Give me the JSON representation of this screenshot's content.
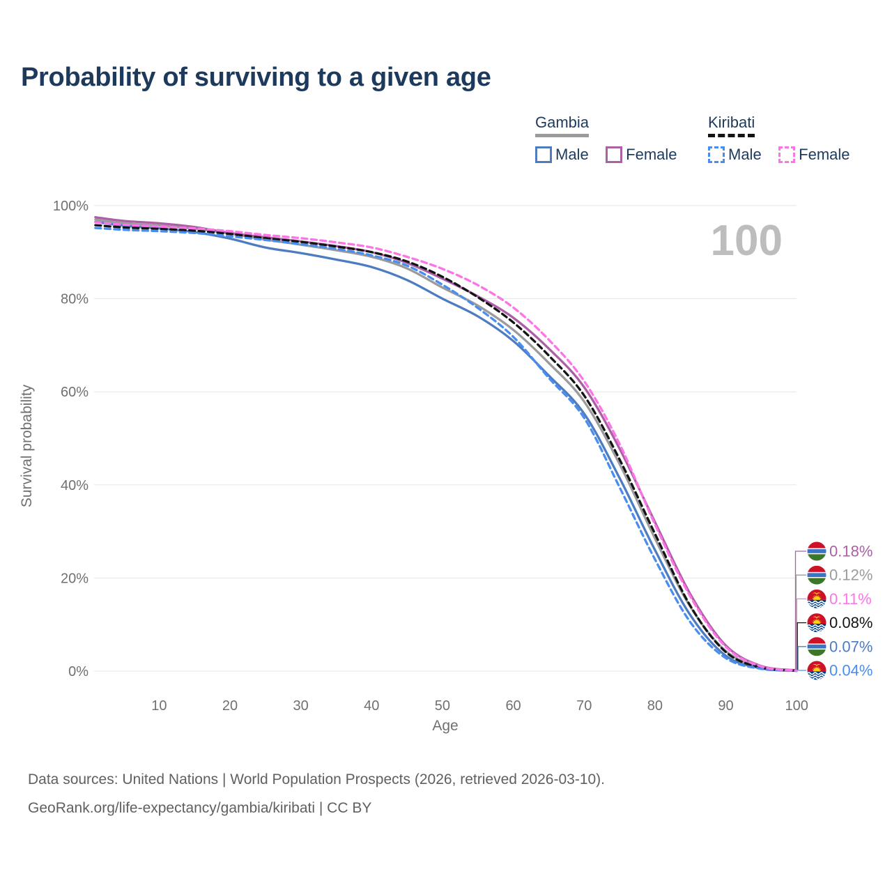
{
  "title": "Probability of surviving to a given age",
  "age_counter": "100",
  "legend": {
    "gambia": {
      "label": "Gambia",
      "male": "Male",
      "female": "Female"
    },
    "kiribati": {
      "label": "Kiribati",
      "male": "Male",
      "female": "Female"
    }
  },
  "colors": {
    "gambia_male": "#4d7cc0",
    "gambia_female": "#ac5fa5",
    "gambia_all": "#9b9b9b",
    "kiribati_male": "#4a8df0",
    "kiribati_female": "#fd74e7",
    "kiribati_all": "#141414",
    "title_text": "#1d3a5c",
    "tick_text": "#707070",
    "gridline": "#e5e5e5",
    "watermark": "#bdbdbd",
    "source_text": "#606060"
  },
  "chart_data": {
    "type": "line",
    "title": "Probability of surviving to a given age",
    "xlabel": "Age",
    "ylabel": "Survival probability",
    "xlim": [
      1,
      100
    ],
    "ylim": [
      0,
      100
    ],
    "grid": "horizontal",
    "legend_position": "top-right",
    "x_ticks": [
      10,
      20,
      30,
      40,
      50,
      60,
      70,
      80,
      90,
      100
    ],
    "y_ticks": [
      0,
      20,
      40,
      60,
      80,
      100
    ],
    "x": [
      1,
      5,
      10,
      15,
      20,
      25,
      30,
      35,
      40,
      45,
      50,
      55,
      60,
      65,
      70,
      75,
      80,
      85,
      90,
      95,
      100
    ],
    "series": [
      {
        "name": "Gambia Male",
        "country": "Gambia",
        "sex": "Male",
        "style": "solid",
        "color": "#4d7cc0",
        "values": [
          96.5,
          95.7,
          95.1,
          94.3,
          92.9,
          91.0,
          89.8,
          88.4,
          86.8,
          84.0,
          80.0,
          76.2,
          70.9,
          63.5,
          55.3,
          41.5,
          26.0,
          12.0,
          3.3,
          0.6,
          0.07
        ]
      },
      {
        "name": "Gambia Female",
        "country": "Gambia",
        "sex": "Female",
        "style": "solid",
        "color": "#ac5fa5",
        "values": [
          97.5,
          96.7,
          96.2,
          95.4,
          94.1,
          93.2,
          92.3,
          91.3,
          90.0,
          87.7,
          84.3,
          80.5,
          75.9,
          69.3,
          61.0,
          47.8,
          32.0,
          16.5,
          5.5,
          1.1,
          0.18
        ]
      },
      {
        "name": "Gambia",
        "country": "Gambia",
        "sex": "Both",
        "style": "solid",
        "color": "#9b9b9b",
        "values": [
          97.0,
          96.2,
          95.7,
          95.0,
          94.0,
          92.7,
          91.6,
          90.4,
          89.0,
          86.5,
          82.4,
          78.5,
          73.3,
          66.2,
          57.9,
          44.5,
          28.5,
          13.8,
          4.3,
          0.85,
          0.12
        ]
      },
      {
        "name": "Kiribati Male",
        "country": "Kiribati",
        "sex": "Male",
        "style": "dashed",
        "color": "#4a8df0",
        "values": [
          95.2,
          94.8,
          94.5,
          94.1,
          93.4,
          92.6,
          91.7,
          90.7,
          89.3,
          87.1,
          83.0,
          78.0,
          71.8,
          63.0,
          54.4,
          39.5,
          24.0,
          10.5,
          2.8,
          0.5,
          0.04
        ]
      },
      {
        "name": "Kiribati Female",
        "country": "Kiribati",
        "sex": "Female",
        "style": "dashed",
        "color": "#fd74e7",
        "values": [
          96.4,
          95.9,
          95.5,
          95.1,
          94.5,
          93.7,
          93.0,
          92.1,
          91.0,
          89.0,
          86.4,
          82.9,
          78.1,
          71.2,
          62.3,
          48.8,
          31.5,
          16.0,
          5.2,
          1.0,
          0.11
        ]
      },
      {
        "name": "Kiribati",
        "country": "Kiribati",
        "sex": "Both",
        "style": "dashed",
        "color": "#141414",
        "values": [
          95.8,
          95.3,
          95.0,
          94.6,
          93.9,
          93.0,
          92.2,
          91.2,
          90.0,
          88.0,
          84.7,
          80.3,
          74.9,
          67.8,
          59.2,
          45.5,
          29.5,
          14.0,
          4.1,
          0.75,
          0.08
        ]
      }
    ],
    "draw_order": [
      "Gambia",
      "Gambia Male",
      "Gambia Female",
      "Kiribati",
      "Kiribati Male",
      "Kiribati Female"
    ],
    "end_labels": [
      {
        "value": "0.18%",
        "series": "Gambia Female",
        "flag": "gambia",
        "color": "#ac5fa5"
      },
      {
        "value": "0.12%",
        "series": "Gambia",
        "flag": "gambia",
        "color": "#9b9b9b"
      },
      {
        "value": "0.11%",
        "series": "Kiribati Female",
        "flag": "kiribati",
        "color": "#fd74e7"
      },
      {
        "value": "0.08%",
        "series": "Kiribati",
        "flag": "kiribati",
        "color": "#141414"
      },
      {
        "value": "0.07%",
        "series": "Gambia Male",
        "flag": "gambia",
        "color": "#4d7cc0"
      },
      {
        "value": "0.04%",
        "series": "Kiribati Male",
        "flag": "kiribati",
        "color": "#4a8df0"
      }
    ]
  },
  "source": {
    "line1": "Data sources: United Nations | World Population Prospects (2026, retrieved 2026-03-10).",
    "line2": "GeoRank.org/life-expectancy/gambia/kiribati | CC BY"
  }
}
